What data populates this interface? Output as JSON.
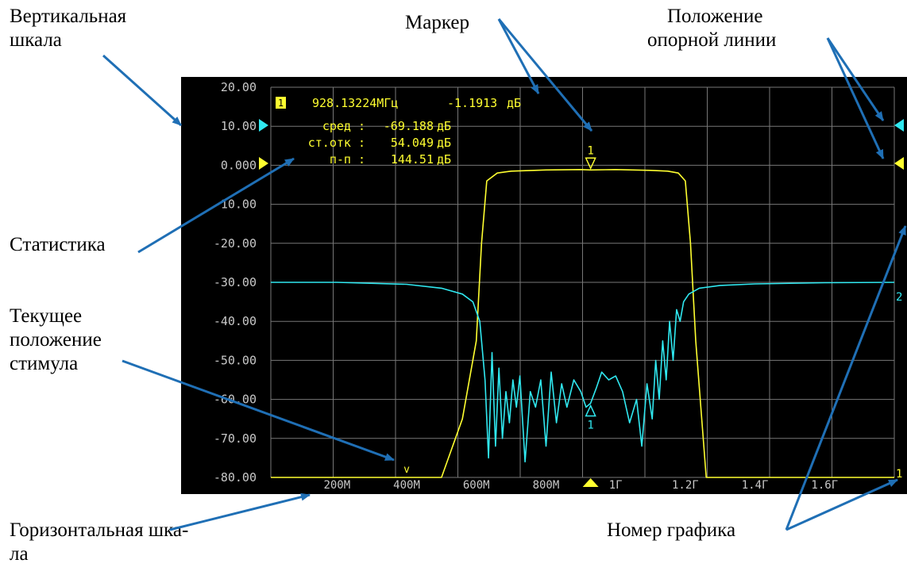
{
  "labels": {
    "vertical_scale": [
      "Вертикальная",
      "шкала"
    ],
    "marker": "Маркер",
    "ref_line": [
      "Положение",
      "опорной линии"
    ],
    "statistics": "Статистика",
    "stimulus": [
      "Текущее",
      "положение",
      "стимула"
    ],
    "horizontal_scale": [
      "Горизонтальная шка-",
      "ла"
    ],
    "trace_number": "Номер графика"
  },
  "instrument": {
    "marker_readout": {
      "index": "1",
      "frequency": "928.13224МГц",
      "value": "-1.1913",
      "unit": "дБ"
    },
    "stats": [
      {
        "label": "сред :",
        "value": "-69.188",
        "unit": "дБ"
      },
      {
        "label": "ст.отк :",
        "value": "54.049",
        "unit": "дБ"
      },
      {
        "label": "п-п :",
        "value": "144.51",
        "unit": "дБ"
      }
    ],
    "trace1_number": "1",
    "trace2_number": "2",
    "marker1_label": "1",
    "marker2_label": "1",
    "stimulus_label": "v",
    "colors": {
      "trace1": "#ffff30",
      "trace2": "#30e8f0",
      "grid": "#777777",
      "axis_text": "#c8c8c8",
      "callout_arrow": "#1f6fb5"
    }
  },
  "chart_data": {
    "type": "line",
    "x_unit": "Hz",
    "xlim": [
      10000000,
      1800000000
    ],
    "ylim": [
      -80,
      20
    ],
    "yticks": [
      "20.00",
      "10.00",
      "0.000",
      "-10.00",
      "-20.00",
      "-30.00",
      "-40.00",
      "-50.00",
      "-60.00",
      "-70.00",
      "-80.00"
    ],
    "xticks": [
      {
        "x": 200000000,
        "label": "200М"
      },
      {
        "x": 400000000,
        "label": "400М"
      },
      {
        "x": 600000000,
        "label": "600М"
      },
      {
        "x": 800000000,
        "label": "800М"
      },
      {
        "x": 1000000000,
        "label": "1Г"
      },
      {
        "x": 1200000000,
        "label": "1.2Г"
      },
      {
        "x": 1400000000,
        "label": "1.4Г"
      },
      {
        "x": 1600000000,
        "label": "1.6Г"
      }
    ],
    "grid": true,
    "ref_levels": {
      "trace2": 10,
      "trace1": 0
    },
    "stimulus_x": 400000000,
    "marker_x": 928132240,
    "series": [
      {
        "x": [
          10000000,
          400000000,
          500000000,
          560000000,
          600000000,
          615000000,
          630000000,
          660000000,
          700000000,
          800000000,
          900000000,
          928000000,
          1000000000,
          1100000000,
          1150000000,
          1180000000,
          1200000000,
          1215000000,
          1230000000,
          1260000000,
          1800000000
        ],
        "y": [
          -80,
          -80,
          -80,
          -65,
          -45,
          -20,
          -4,
          -2,
          -1.5,
          -1.2,
          -1.1,
          -1.19,
          -1.1,
          -1.3,
          -1.5,
          -2,
          -4,
          -20,
          -45,
          -80,
          -80
        ]
      },
      {
        "x": [
          10000000,
          200000000,
          400000000,
          500000000,
          560000000,
          590000000,
          610000000,
          625000000,
          635000000,
          645000000,
          655000000,
          665000000,
          675000000,
          685000000,
          695000000,
          705000000,
          715000000,
          725000000,
          740000000,
          755000000,
          770000000,
          785000000,
          800000000,
          815000000,
          830000000,
          845000000,
          860000000,
          880000000,
          900000000,
          915000000,
          928000000,
          945000000,
          960000000,
          980000000,
          1000000000,
          1020000000,
          1040000000,
          1060000000,
          1075000000,
          1090000000,
          1105000000,
          1115000000,
          1125000000,
          1135000000,
          1145000000,
          1155000000,
          1165000000,
          1175000000,
          1185000000,
          1195000000,
          1210000000,
          1240000000,
          1300000000,
          1400000000,
          1600000000,
          1800000000
        ],
        "y": [
          -30,
          -30,
          -30.5,
          -31.5,
          -33,
          -35,
          -40,
          -55,
          -75,
          -48,
          -72,
          -52,
          -70,
          -58,
          -66,
          -55,
          -62,
          -54,
          -76,
          -58,
          -62,
          -55,
          -72,
          -53,
          -66,
          -56,
          -62,
          -55,
          -58,
          -62,
          -61,
          -57,
          -53,
          -55,
          -54,
          -58,
          -66,
          -60,
          -72,
          -56,
          -65,
          -50,
          -60,
          -45,
          -55,
          -40,
          -50,
          -37,
          -40,
          -35,
          -33,
          -31.5,
          -30.8,
          -30.4,
          -30.1,
          -30
        ]
      }
    ]
  }
}
